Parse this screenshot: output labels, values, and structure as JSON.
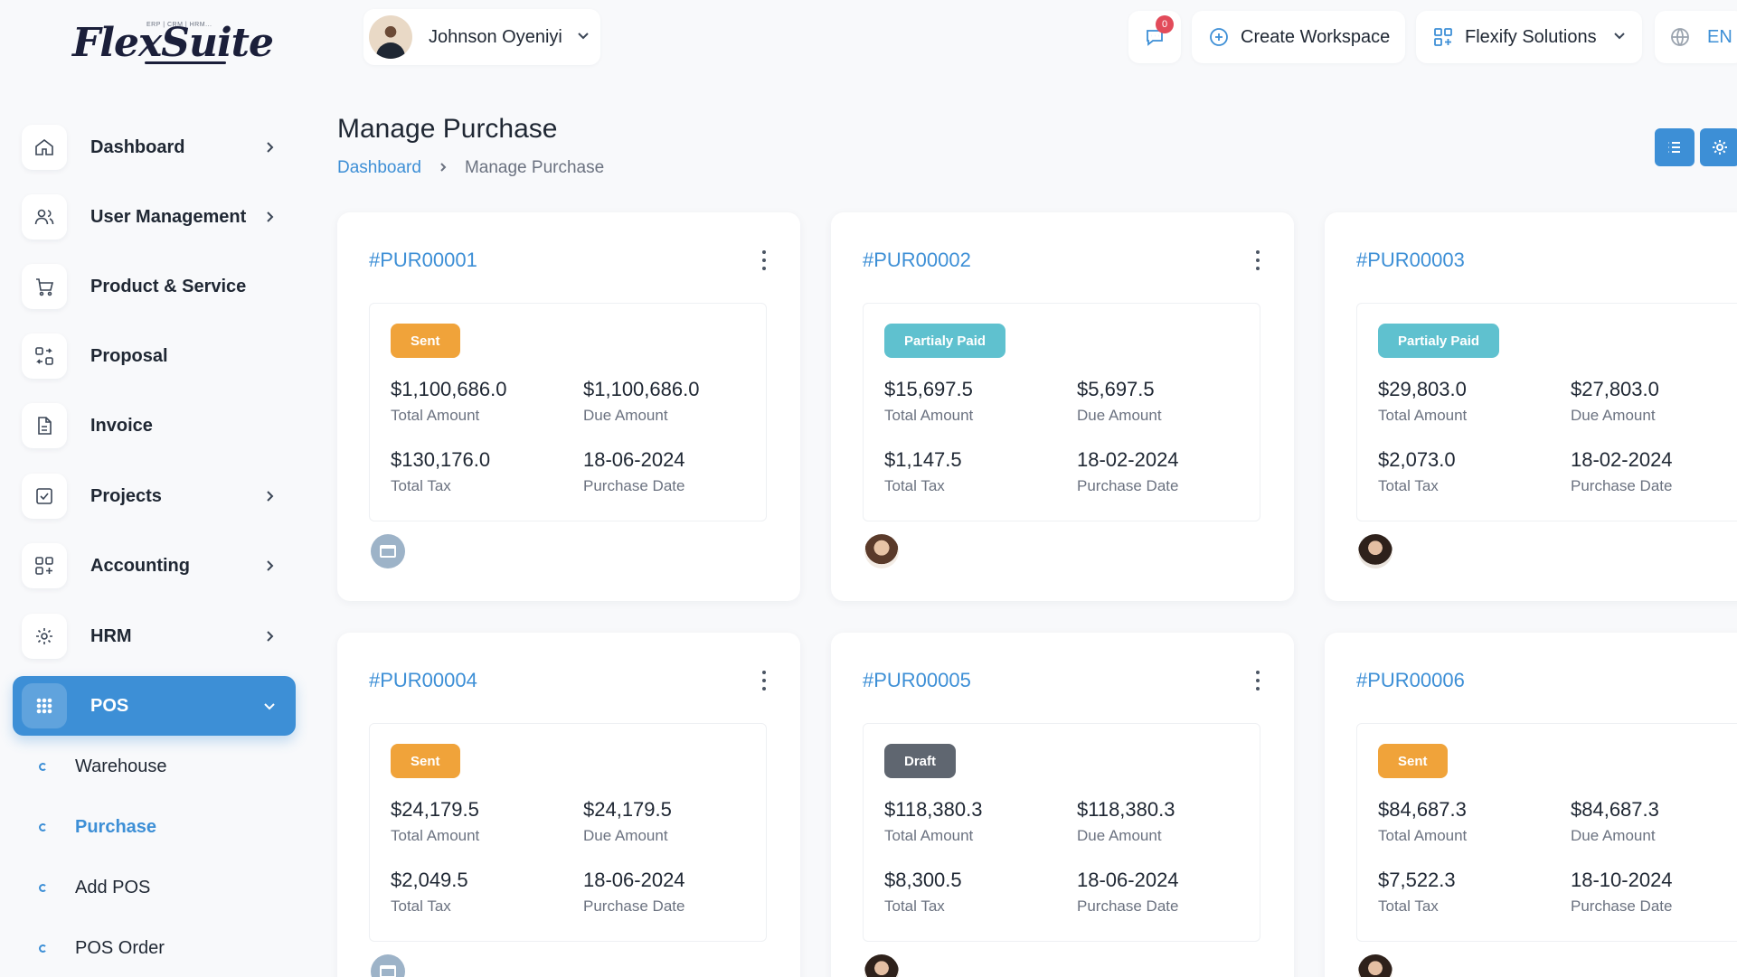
{
  "app": {
    "logo_text": "FlexSuite",
    "logo_tag": "ERP | CRM | HRM..."
  },
  "topbar": {
    "user_name": "Johnson Oyeniyi",
    "chat_badge": "0",
    "create_workspace": "Create Workspace",
    "company": "Flexify Solutions",
    "language": "EN"
  },
  "sidebar": {
    "items": [
      {
        "label": "Dashboard",
        "icon": "home-icon"
      },
      {
        "label": "User Management",
        "icon": "users-icon"
      },
      {
        "label": "Product & Service",
        "icon": "cart-icon"
      },
      {
        "label": "Proposal",
        "icon": "proposal-icon"
      },
      {
        "label": "Invoice",
        "icon": "invoice-icon"
      },
      {
        "label": "Projects",
        "icon": "checkbox-icon"
      },
      {
        "label": "Accounting",
        "icon": "grid-plus-icon"
      },
      {
        "label": "HRM",
        "icon": "hrm-icon"
      },
      {
        "label": "POS",
        "icon": "dots-grid-icon"
      }
    ],
    "pos_sub": [
      {
        "label": "Warehouse"
      },
      {
        "label": "Purchase"
      },
      {
        "label": "Add POS"
      },
      {
        "label": "POS Order"
      }
    ]
  },
  "page": {
    "title": "Manage Purchase",
    "breadcrumb_home": "Dashboard",
    "breadcrumb_current": "Manage Purchase"
  },
  "labels": {
    "total_amount": "Total Amount",
    "due_amount": "Due Amount",
    "total_tax": "Total Tax",
    "purchase_date": "Purchase Date"
  },
  "status_colors": {
    "Sent": "#f0a33a",
    "Partialy Paid": "#5fc1cf",
    "Draft": "#5f6670"
  },
  "purchases": [
    {
      "id": "#PUR00001",
      "status": "Sent",
      "total_amount": "$1,100,686.0",
      "due_amount": "$1,100,686.0",
      "total_tax": "$130,176.0",
      "purchase_date": "18-06-2024"
    },
    {
      "id": "#PUR00002",
      "status": "Partialy Paid",
      "total_amount": "$15,697.5",
      "due_amount": "$5,697.5",
      "total_tax": "$1,147.5",
      "purchase_date": "18-02-2024"
    },
    {
      "id": "#PUR00003",
      "status": "Partialy Paid",
      "total_amount": "$29,803.0",
      "due_amount": "$27,803.0",
      "total_tax": "$2,073.0",
      "purchase_date": "18-02-2024"
    },
    {
      "id": "#PUR00004",
      "status": "Sent",
      "total_amount": "$24,179.5",
      "due_amount": "$24,179.5",
      "total_tax": "$2,049.5",
      "purchase_date": "18-06-2024"
    },
    {
      "id": "#PUR00005",
      "status": "Draft",
      "total_amount": "$118,380.3",
      "due_amount": "$118,380.3",
      "total_tax": "$8,300.5",
      "purchase_date": "18-06-2024"
    },
    {
      "id": "#PUR00006",
      "status": "Sent",
      "total_amount": "$84,687.3",
      "due_amount": "$84,687.3",
      "total_tax": "$7,522.3",
      "purchase_date": "18-10-2024"
    }
  ]
}
